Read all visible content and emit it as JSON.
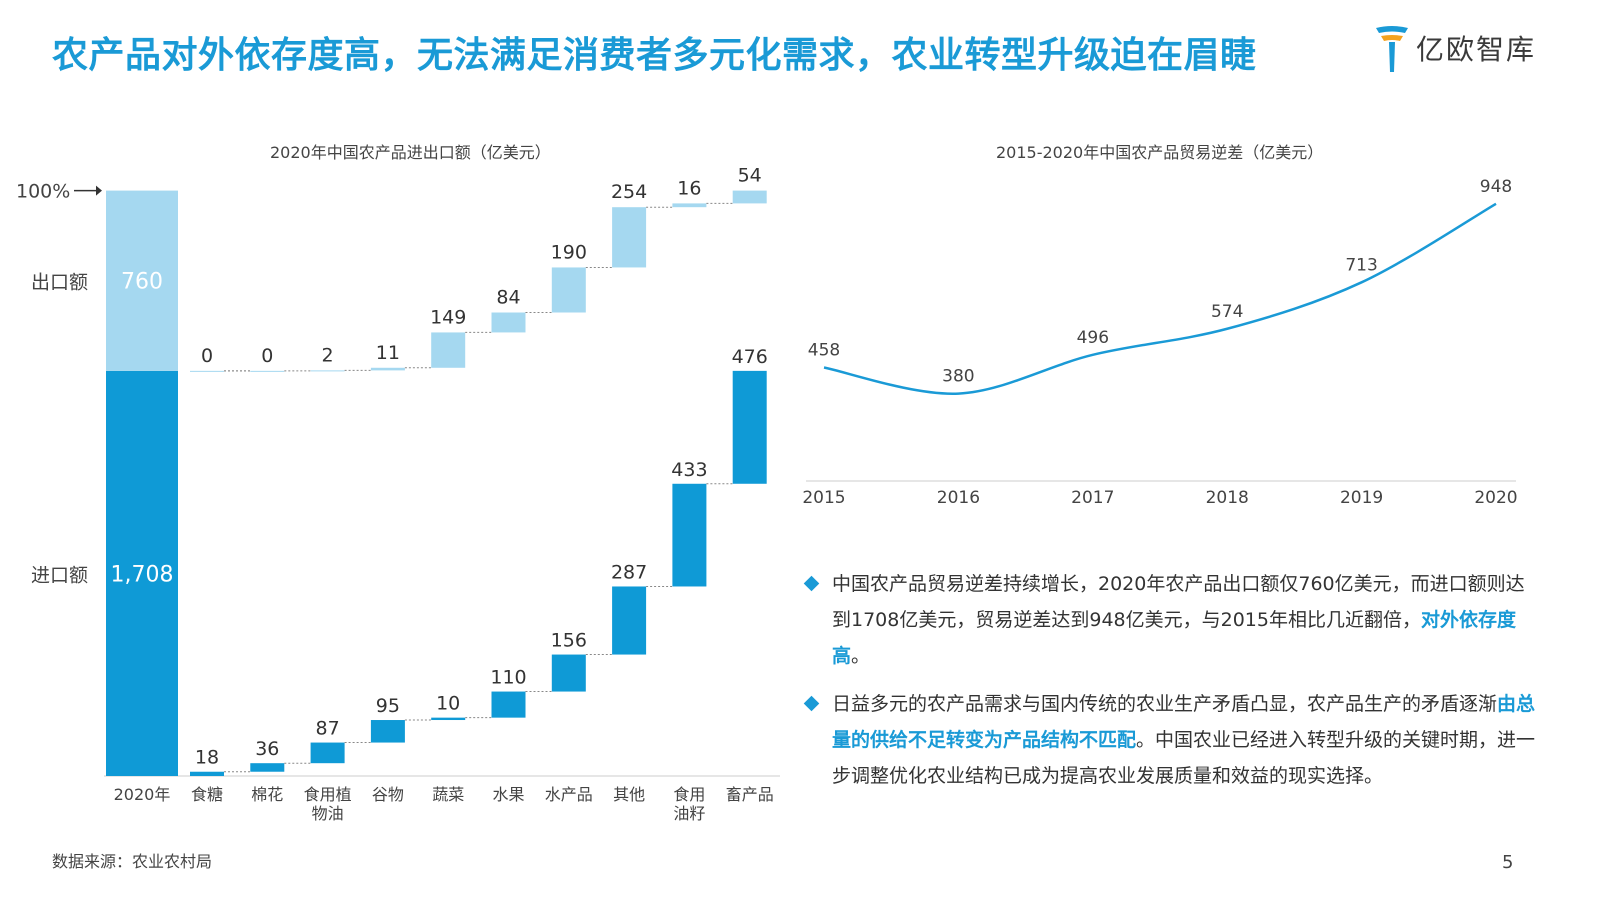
{
  "page": {
    "title": "农产品对外依存度高，无法满足消费者多元化需求，农业转型升级迫在眉睫",
    "logo_text": "亿欧智库",
    "source": "数据来源：农业农村局",
    "page_number": "5"
  },
  "bullets": [
    {
      "before": "中国农产品贸易逆差持续增长，2020年农产品出口额仅760亿美元，而进口额则达到1708亿美元，贸易逆差达到948亿美元，与2015年相比几近翻倍，",
      "highlight": "对外依存度高",
      "after": "。"
    },
    {
      "before": "日益多元的农产品需求与国内传统的农业生产矛盾凸显，农产品生产的矛盾逐渐",
      "highlight": "由总量的供给不足转变为产品结构不匹配",
      "after": "。中国农业已经进入转型升级的关键时期，进一步调整优化农业结构已成为提高农业发展质量和效益的现实选择。"
    }
  ],
  "colors": {
    "accent": "#1a9ad6",
    "import": "#0f9ad6",
    "export": "#a5d8f0",
    "line": "#1a9ad6"
  },
  "chart_data": [
    {
      "type": "bar",
      "subtype": "waterfall-stacked",
      "title": "2020年中国农产品进出口额（亿美元）",
      "total": {
        "label": "2020年",
        "export": 760,
        "import": 1708,
        "export_text": "760",
        "import_text": "1,708"
      },
      "row_labels": {
        "export": "出口额",
        "import": "进口额",
        "top": "100%"
      },
      "categories": [
        "食糖",
        "棉花",
        "食用植物油",
        "谷物",
        "蔬菜",
        "水果",
        "水产品",
        "其他",
        "食用油籽",
        "畜产品"
      ],
      "category_lines": [
        [
          "食糖"
        ],
        [
          "棉花"
        ],
        [
          "食用植",
          "物油"
        ],
        [
          "谷物"
        ],
        [
          "蔬菜"
        ],
        [
          "水果"
        ],
        [
          "水产品"
        ],
        [
          "其他"
        ],
        [
          "食用",
          "油籽"
        ],
        [
          "畜产品"
        ]
      ],
      "series": [
        {
          "name": "进口额",
          "values": [
            18,
            36,
            87,
            95,
            10,
            110,
            156,
            287,
            433,
            476
          ]
        },
        {
          "name": "出口额",
          "values": [
            0,
            0,
            2,
            11,
            149,
            84,
            190,
            254,
            16,
            54
          ]
        }
      ]
    },
    {
      "type": "line",
      "title": "2015-2020年中国农产品贸易逆差（亿美元）",
      "x": [
        "2015",
        "2016",
        "2017",
        "2018",
        "2019",
        "2020"
      ],
      "series": [
        {
          "values": [
            458,
            380,
            496,
            574,
            713,
            948
          ]
        }
      ],
      "ylim": [
        0,
        1000
      ]
    }
  ]
}
